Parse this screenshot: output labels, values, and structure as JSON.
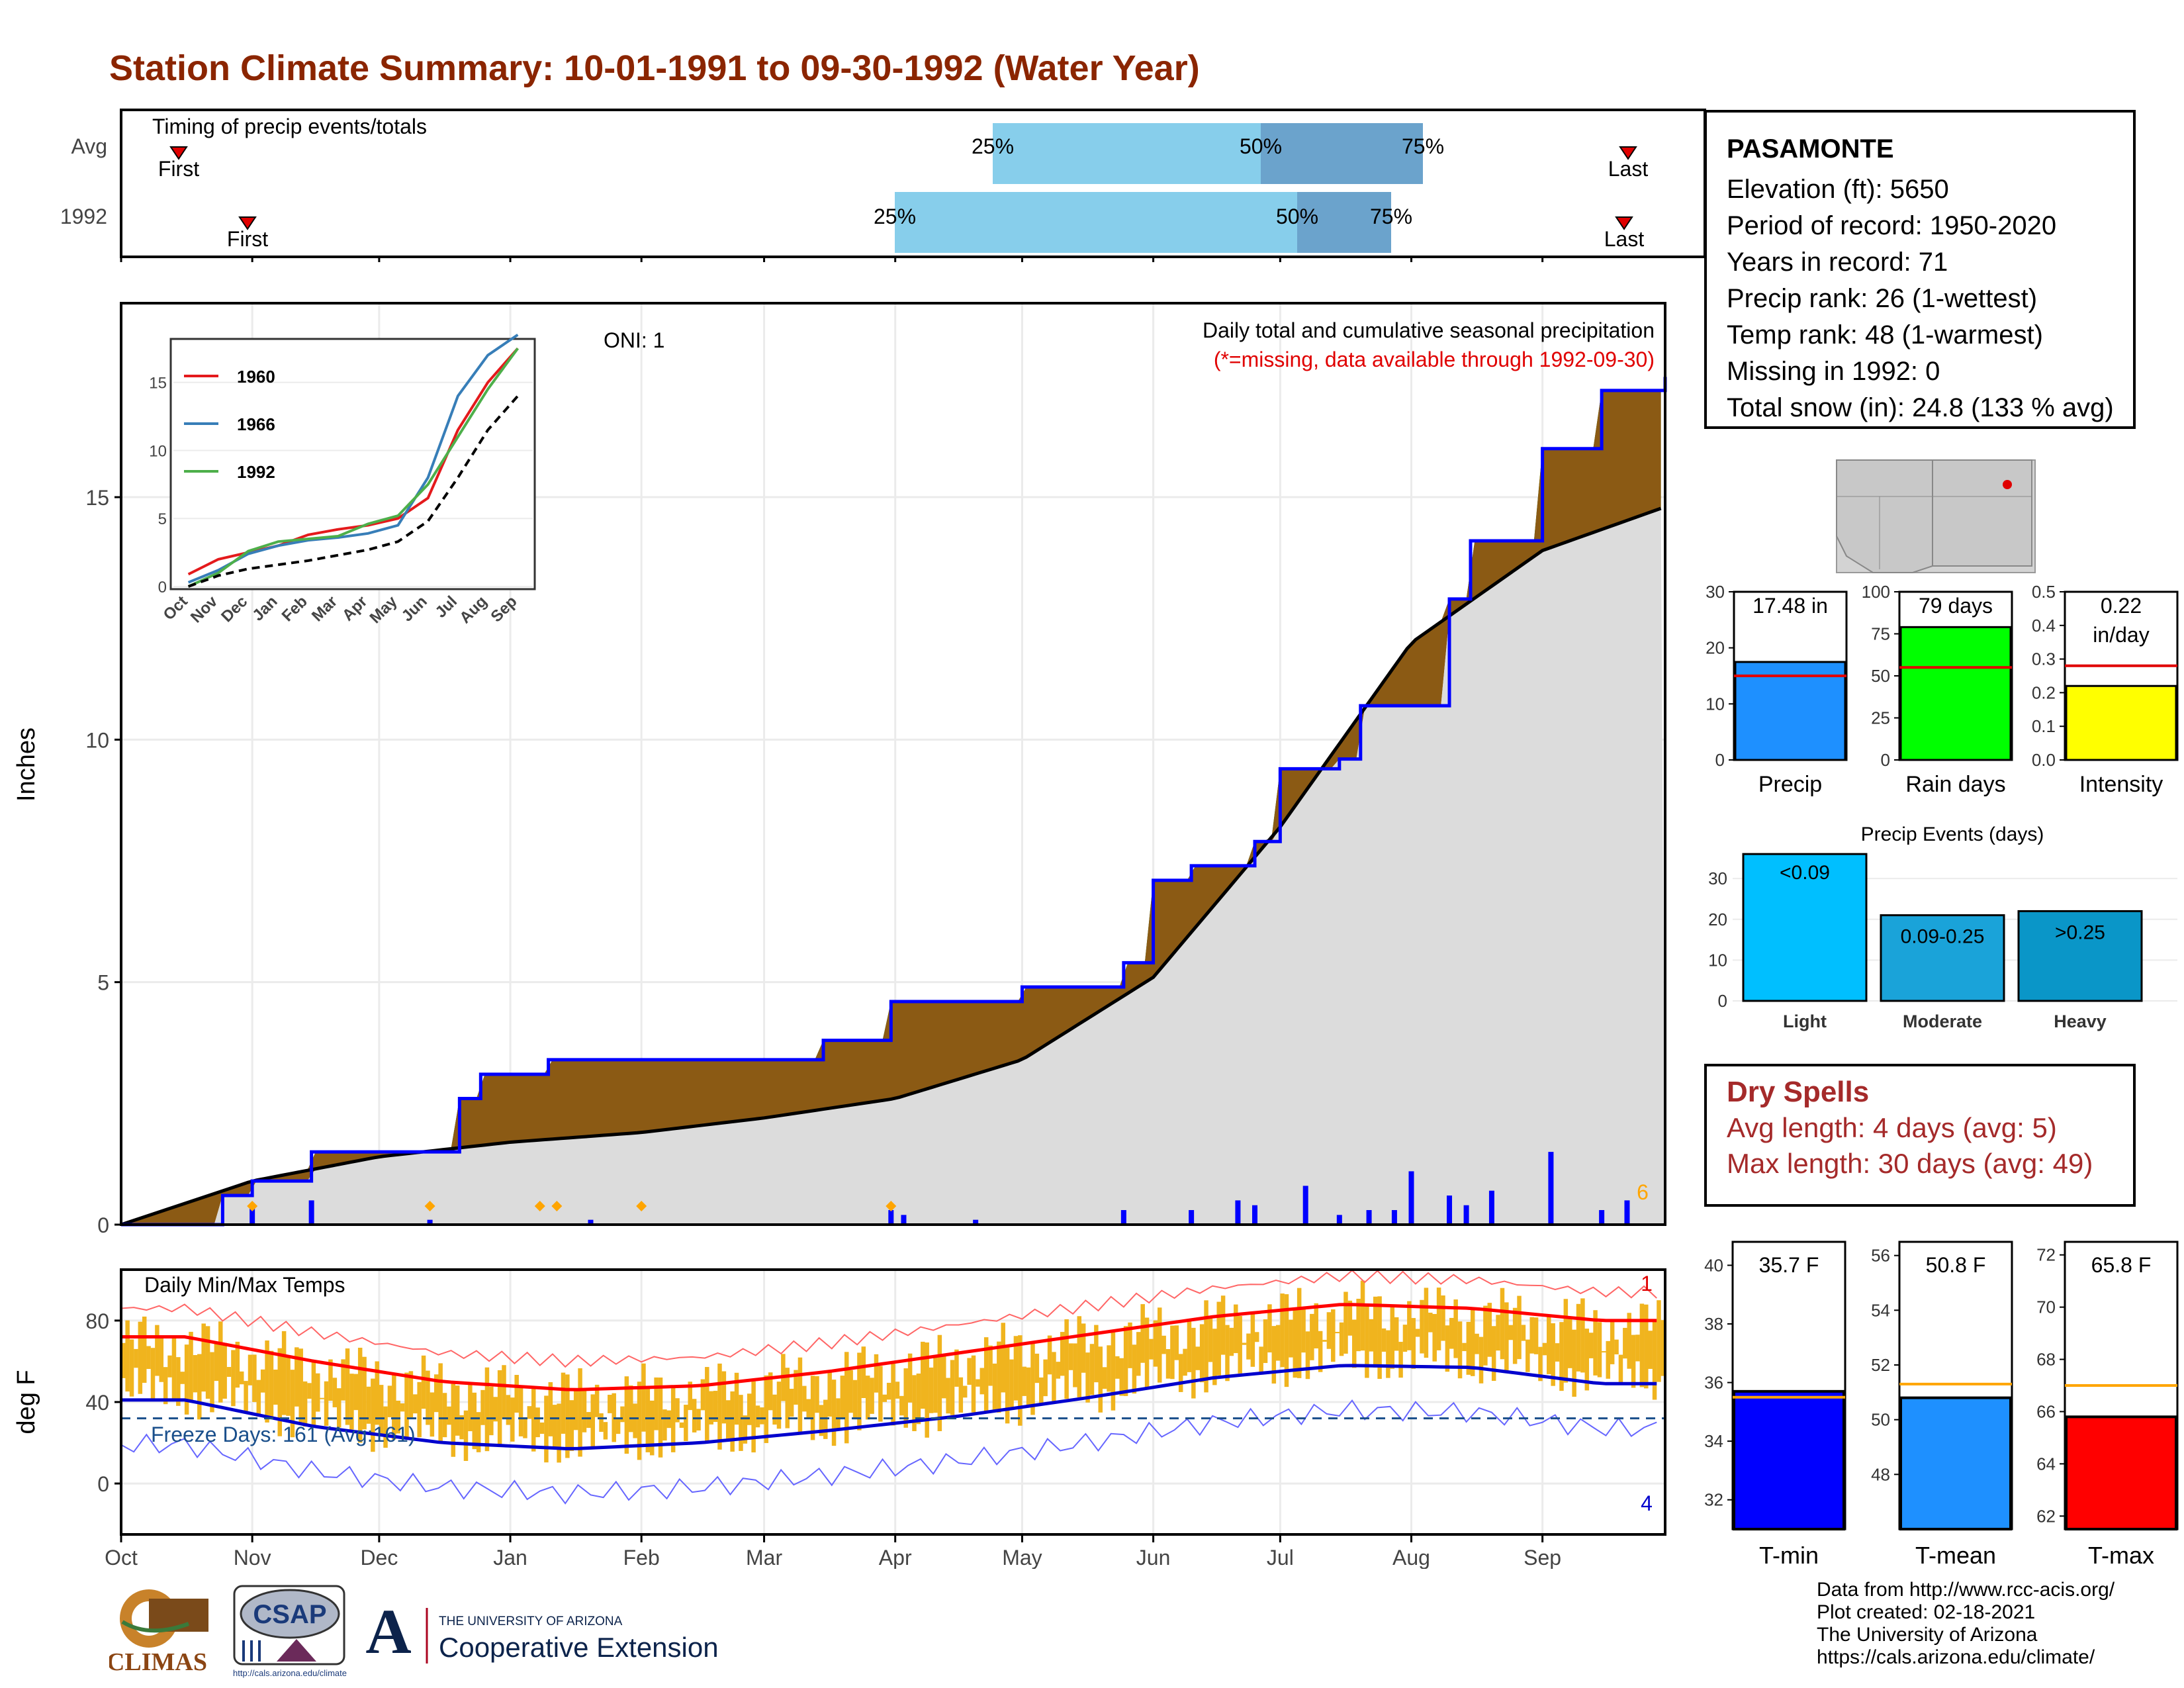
{
  "title": "Station Climate Summary: 10-01-1991 to 09-30-1992 (Water Year)",
  "timing": {
    "label": "Timing of precip events/totals",
    "rows": [
      {
        "name": "Avg",
        "first_label": "First",
        "last_label": "Last",
        "p25": "25%",
        "p50": "50%",
        "p75": "75%"
      },
      {
        "name": "1992",
        "first_label": "First",
        "last_label": "Last",
        "p25": "25%",
        "p50": "50%",
        "p75": "75%"
      }
    ]
  },
  "station": {
    "name": "PASAMONTE",
    "elevation": "Elevation (ft): 5650",
    "period": "Period of record: 1950-2020",
    "years": "Years in record: 71",
    "precip_rank": "Precip rank: 26 (1-wettest)",
    "temp_rank": "Temp rank: 48 (1-warmest)",
    "missing": "Missing in 1992: 0",
    "snow": "Total snow (in): 24.8 (133 % avg)"
  },
  "main_precip": {
    "ylabel": "Inches",
    "oni": "ONI: 1",
    "caption": "Daily total and cumulative seasonal precipitation",
    "missing_note": "(*=missing, data available through 1992-09-30)",
    "count_label": "6",
    "y_ticks": [
      "0",
      "5",
      "10",
      "15"
    ]
  },
  "month_labels": [
    "Oct",
    "Nov",
    "Dec",
    "Jan",
    "Feb",
    "Mar",
    "Apr",
    "May",
    "Jun",
    "Jul",
    "Aug",
    "Sep"
  ],
  "inset": {
    "legend": [
      "1960",
      "1966",
      "1992"
    ],
    "y_ticks": [
      "0",
      "5",
      "10",
      "15"
    ],
    "x_ticks": [
      "Oct",
      "Nov",
      "Dec",
      "Jan",
      "Feb",
      "Mar",
      "Apr",
      "May",
      "Jun",
      "Jul",
      "Aug",
      "Sep"
    ]
  },
  "temps": {
    "label": "Daily Min/Max Temps",
    "ylabel": "deg F",
    "freeze": "Freeze Days: 161 (Avg:161)",
    "count_high": "1",
    "count_low": "4",
    "y_ticks": [
      "0",
      "40",
      "80"
    ]
  },
  "bars": {
    "precip": {
      "label": "Precip",
      "value_label": "17.48 in",
      "ticks": [
        "0",
        "10",
        "20",
        "30"
      ]
    },
    "rain_days": {
      "label": "Rain days",
      "value_label": "79 days",
      "ticks": [
        "0",
        "25",
        "50",
        "75",
        "100"
      ]
    },
    "intensity": {
      "label": "Intensity",
      "value_label1": "0.22",
      "value_label2": "in/day",
      "ticks": [
        "0.0",
        "0.1",
        "0.2",
        "0.3",
        "0.4",
        "0.5"
      ]
    }
  },
  "events": {
    "title": "Precip Events (days)",
    "ticks": [
      "0",
      "10",
      "20",
      "30"
    ],
    "categories": [
      "Light",
      "Moderate",
      "Heavy"
    ],
    "bar_labels": [
      "<0.09",
      "0.09-0.25",
      ">0.25"
    ]
  },
  "dry": {
    "title": "Dry Spells",
    "avg": "Avg length: 4 days (avg: 5)",
    "max": "Max length: 30 days (avg: 49)"
  },
  "temp_bars": {
    "tmin": {
      "label": "T-min",
      "value_label": "35.7 F",
      "ticks": [
        "32",
        "34",
        "36",
        "38",
        "40"
      ]
    },
    "tmean": {
      "label": "T-mean",
      "value_label": "50.8 F",
      "ticks": [
        "48",
        "50",
        "52",
        "54",
        "56"
      ]
    },
    "tmax": {
      "label": "T-max",
      "value_label": "65.8 F",
      "ticks": [
        "62",
        "64",
        "66",
        "68",
        "70",
        "72"
      ]
    }
  },
  "credits": [
    "Data from http://www.rcc-acis.org/",
    "Plot created: 02-18-2021",
    "The University of Arizona",
    "https://cals.arizona.edu/climate/"
  ],
  "logos": {
    "climas": "CLIMAS",
    "csap": "CSAP",
    "csap_url": "http://cals.arizona.edu/climate",
    "ua_small": "THE UNIVERSITY OF ARIZONA",
    "ua_big": "Cooperative Extension"
  },
  "chart_data": [
    {
      "type": "area",
      "title": "Daily total and cumulative seasonal precipitation",
      "ylabel": "Inches",
      "ylim": [
        0,
        19
      ],
      "x_range": [
        "1991-10-01",
        "1992-09-30"
      ],
      "cumulative_1992": {
        "x": [
          "1991-10-01",
          "1991-10-25",
          "1991-11-01",
          "1991-11-15",
          "1991-12-05",
          "1991-12-20",
          "1991-12-25",
          "1992-01-05",
          "1992-01-10",
          "1992-01-15",
          "1992-03-15",
          "1992-03-31",
          "1992-04-03",
          "1992-05-01",
          "1992-05-25",
          "1992-06-01",
          "1992-06-10",
          "1992-06-25",
          "1992-07-01",
          "1992-07-15",
          "1992-07-20",
          "1992-08-10",
          "1992-08-15",
          "1992-09-01",
          "1992-09-15",
          "1992-09-30"
        ],
        "y": [
          0,
          0.6,
          0.9,
          1.5,
          1.5,
          2.6,
          3.1,
          3.1,
          3.4,
          3.4,
          3.8,
          4.6,
          4.6,
          4.9,
          5.4,
          7.1,
          7.4,
          7.9,
          9.4,
          9.6,
          10.7,
          12.9,
          14.1,
          16.0,
          17.2,
          17.48
        ]
      },
      "cumulative_avg": {
        "x": [
          "1991-10-01",
          "1991-11-01",
          "1991-12-01",
          "1992-01-01",
          "1992-02-01",
          "1992-03-01",
          "1992-04-01",
          "1992-05-01",
          "1992-06-01",
          "1992-07-01",
          "1992-08-01",
          "1992-09-01",
          "1992-09-30"
        ],
        "y": [
          0,
          0.9,
          1.4,
          1.7,
          1.9,
          2.2,
          2.6,
          3.4,
          5.1,
          8.2,
          12.0,
          13.9,
          14.8
        ]
      },
      "daily_precip": {
        "x": [
          "1991-11-01",
          "1991-11-15",
          "1991-12-13",
          "1992-01-20",
          "1992-03-31",
          "1992-04-03",
          "1992-04-20",
          "1992-05-25",
          "1992-06-10",
          "1992-06-21",
          "1992-06-25",
          "1992-07-07",
          "1992-07-15",
          "1992-07-22",
          "1992-07-28",
          "1992-08-01",
          "1992-08-10",
          "1992-08-14",
          "1992-08-20",
          "1992-09-03",
          "1992-09-15",
          "1992-09-21"
        ],
        "y": [
          0.4,
          0.5,
          0.1,
          0.1,
          0.3,
          0.2,
          0.1,
          0.3,
          0.3,
          0.5,
          0.4,
          0.8,
          0.2,
          0.3,
          0.3,
          1.1,
          0.6,
          0.4,
          0.7,
          1.5,
          0.3,
          0.5
        ]
      }
    },
    {
      "type": "line",
      "title": "",
      "x_ticks": [
        "Oct",
        "Nov",
        "Dec",
        "Jan",
        "Feb",
        "Mar",
        "Apr",
        "May",
        "Jun",
        "Jul",
        "Aug",
        "Sep"
      ],
      "ylim": [
        0,
        18
      ],
      "series": [
        {
          "name": "1960",
          "color": "#e41a1c",
          "values": [
            0.9,
            2.0,
            2.5,
            3.0,
            3.8,
            4.2,
            4.5,
            5.0,
            6.5,
            11.5,
            15.0,
            17.5
          ]
        },
        {
          "name": "1966",
          "color": "#377eb8",
          "values": [
            0.3,
            1.2,
            2.4,
            3.0,
            3.4,
            3.6,
            3.9,
            4.5,
            8.0,
            14.0,
            17.0,
            18.5
          ]
        },
        {
          "name": "1992",
          "color": "#4daf4a",
          "values": [
            0.0,
            1.0,
            2.6,
            3.3,
            3.5,
            3.7,
            4.6,
            5.2,
            7.5,
            11.0,
            14.5,
            17.5
          ]
        },
        {
          "name": "",
          "color": "#000000",
          "values": [
            0,
            0.8,
            1.3,
            1.6,
            1.9,
            2.3,
            2.7,
            3.3,
            4.8,
            8.0,
            11.5,
            14.0
          ]
        }
      ]
    },
    {
      "type": "line",
      "title": "Daily Min/Max Temps",
      "ylabel": "deg F",
      "ylim": [
        -25,
        105
      ],
      "categories": [
        "Oct",
        "Nov",
        "Dec",
        "Jan",
        "Feb",
        "Mar",
        "Apr",
        "May",
        "Jun",
        "Jul",
        "Aug",
        "Sep"
      ],
      "series": [
        {
          "name": "",
          "color": "#ff0000",
          "values": [
            72,
            60,
            50,
            46,
            48,
            55,
            64,
            73,
            82,
            88,
            86,
            80
          ]
        },
        {
          "name": "",
          "color": "#0000ff",
          "values": [
            41,
            28,
            20,
            17,
            20,
            26,
            33,
            42,
            52,
            58,
            57,
            49
          ]
        }
      ],
      "freeze_line": 32
    },
    {
      "type": "bar",
      "categories": [
        "Precip"
      ],
      "values": [
        17.48
      ],
      "avg": 15.0,
      "ylim": [
        0,
        30
      ]
    },
    {
      "type": "bar",
      "categories": [
        "Rain days"
      ],
      "values": [
        79
      ],
      "avg": 55,
      "ylim": [
        0,
        100
      ]
    },
    {
      "type": "bar",
      "categories": [
        "Intensity"
      ],
      "values": [
        0.22
      ],
      "avg": 0.28,
      "ylim": [
        0,
        0.5
      ]
    },
    {
      "type": "bar",
      "title": "Precip Events (days)",
      "categories": [
        "Light",
        "Moderate",
        "Heavy"
      ],
      "values": [
        36,
        21,
        22
      ],
      "ylim": [
        0,
        37
      ]
    },
    {
      "type": "bar",
      "categories": [
        "T-min"
      ],
      "values": [
        35.7
      ],
      "avg": 35.5,
      "ylim": [
        31,
        40.8
      ]
    },
    {
      "type": "bar",
      "categories": [
        "T-mean"
      ],
      "values": [
        50.8
      ],
      "avg": 51.3,
      "ylim": [
        46,
        56.5
      ]
    },
    {
      "type": "bar",
      "categories": [
        "T-max"
      ],
      "values": [
        65.8
      ],
      "avg": 67.0,
      "ylim": [
        61.5,
        72.5
      ]
    }
  ]
}
